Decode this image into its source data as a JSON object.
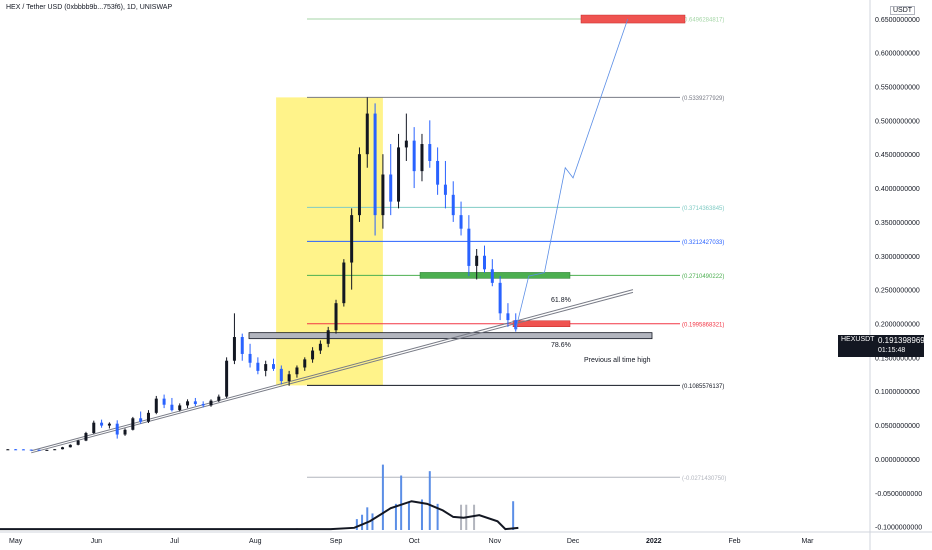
{
  "header": {
    "title": "HEX / Tether USD (0xbbbb9b...753f6), 1D, UNISWAP",
    "currency": "USDT"
  },
  "price_tag": {
    "symbol": "HEXUSDT",
    "price": "0.1913989690",
    "countdown": "01:15:48"
  },
  "annotations": {
    "prev_ath": "Previous all time high",
    "fib_618": "61.8%",
    "fib_786": "78.6%"
  },
  "colors": {
    "up": "#131722",
    "down": "#2962ff",
    "highlight": "#fff176",
    "red_box": "#ef5350",
    "green_box": "#4caf50",
    "volume_blue": "#5b8ee6",
    "volume_gray": "#b2b5be"
  },
  "chart_data": {
    "type": "candlestick",
    "y_axis": {
      "ticks": [
        "0.6500000000",
        "0.6000000000",
        "0.5500000000",
        "0.5000000000",
        "0.4500000000",
        "0.4000000000",
        "0.3500000000",
        "0.3000000000",
        "0.2500000000",
        "0.2000000000",
        "0.1500000000",
        "0.1000000000",
        "0.0500000000",
        "0.0000000000",
        "-0.0500000000",
        "-0.1000000000"
      ],
      "range": [
        -0.105,
        0.66
      ]
    },
    "x_axis": {
      "ticks": [
        "May",
        "Jun",
        "Jul",
        "Aug",
        "Sep",
        "Oct",
        "Nov",
        "Dec",
        "2022",
        "Feb",
        "Mar"
      ],
      "range": [
        "2021-04-25",
        "2022-03-25"
      ]
    },
    "fib_levels": [
      {
        "label": "(0.6496284817)",
        "value": 0.6496284817,
        "color": "#a5d6a7"
      },
      {
        "label": "(0.5339277929)",
        "value": 0.5339277929,
        "color": "#787b86"
      },
      {
        "label": "(0.3714363845)",
        "value": 0.3714363845,
        "color": "#80cbc4"
      },
      {
        "label": "(0.3212427033)",
        "value": 0.3212427033,
        "color": "#2962ff"
      },
      {
        "label": "(0.2710490222)",
        "value": 0.2710490222,
        "color": "#4caf50"
      },
      {
        "label": "(0.1995868321)",
        "value": 0.1995868321,
        "color": "#f23645"
      },
      {
        "label": "(0.1085576137)",
        "value": 0.1085576137,
        "color": "#131722"
      },
      {
        "label": "(-0.0271430750)",
        "value": -0.027143075,
        "color": "#b2b5be"
      }
    ],
    "candles": [
      [
        "2021-04-28",
        0.014,
        0.0145,
        0.0138,
        0.0142
      ],
      [
        "2021-05-01",
        0.0142,
        0.0146,
        0.0139,
        0.0141
      ],
      [
        "2021-05-04",
        0.0141,
        0.0143,
        0.0135,
        0.0137
      ],
      [
        "2021-05-07",
        0.0137,
        0.014,
        0.0133,
        0.0136
      ],
      [
        "2021-05-10",
        0.0136,
        0.0138,
        0.0128,
        0.0131
      ],
      [
        "2021-05-13",
        0.0131,
        0.0135,
        0.0127,
        0.0133
      ],
      [
        "2021-05-16",
        0.0133,
        0.0145,
        0.013,
        0.0143
      ],
      [
        "2021-05-19",
        0.0143,
        0.0178,
        0.014,
        0.0172
      ],
      [
        "2021-05-22",
        0.0172,
        0.0215,
        0.0168,
        0.0208
      ],
      [
        "2021-05-25",
        0.0208,
        0.0283,
        0.02,
        0.027
      ],
      [
        "2021-05-28",
        0.027,
        0.04,
        0.0262,
        0.0382
      ],
      [
        "2021-05-31",
        0.0382,
        0.0565,
        0.037,
        0.0535
      ],
      [
        "2021-06-03",
        0.0535,
        0.058,
        0.046,
        0.0492
      ],
      [
        "2021-06-06",
        0.0492,
        0.054,
        0.045,
        0.052
      ],
      [
        "2021-06-09",
        0.052,
        0.057,
        0.03,
        0.036
      ],
      [
        "2021-06-12",
        0.036,
        0.045,
        0.034,
        0.043
      ],
      [
        "2021-06-15",
        0.043,
        0.062,
        0.042,
        0.06
      ],
      [
        "2021-06-18",
        0.06,
        0.07,
        0.052,
        0.055
      ],
      [
        "2021-06-21",
        0.055,
        0.072,
        0.053,
        0.068
      ],
      [
        "2021-06-24",
        0.068,
        0.093,
        0.066,
        0.089
      ],
      [
        "2021-06-27",
        0.089,
        0.095,
        0.075,
        0.08
      ],
      [
        "2021-06-30",
        0.08,
        0.09,
        0.07,
        0.072
      ],
      [
        "2021-07-03",
        0.072,
        0.082,
        0.07,
        0.079
      ],
      [
        "2021-07-06",
        0.079,
        0.088,
        0.075,
        0.085
      ],
      [
        "2021-07-09",
        0.085,
        0.09,
        0.078,
        0.081
      ],
      [
        "2021-07-12",
        0.081,
        0.085,
        0.076,
        0.079
      ],
      [
        "2021-07-15",
        0.079,
        0.088,
        0.077,
        0.086
      ],
      [
        "2021-07-18",
        0.086,
        0.095,
        0.084,
        0.092
      ],
      [
        "2021-07-21",
        0.092,
        0.15,
        0.09,
        0.145
      ],
      [
        "2021-07-24",
        0.145,
        0.215,
        0.14,
        0.18
      ],
      [
        "2021-07-27",
        0.18,
        0.185,
        0.145,
        0.155
      ],
      [
        "2021-07-30",
        0.155,
        0.17,
        0.135,
        0.142
      ],
      [
        "2021-08-02",
        0.142,
        0.15,
        0.125,
        0.13
      ],
      [
        "2021-08-05",
        0.13,
        0.145,
        0.122,
        0.14
      ],
      [
        "2021-08-08",
        0.14,
        0.148,
        0.13,
        0.133
      ],
      [
        "2021-08-11",
        0.133,
        0.138,
        0.11,
        0.115
      ],
      [
        "2021-08-14",
        0.115,
        0.13,
        0.108,
        0.125
      ],
      [
        "2021-08-17",
        0.125,
        0.138,
        0.12,
        0.135
      ],
      [
        "2021-08-20",
        0.135,
        0.15,
        0.13,
        0.147
      ],
      [
        "2021-08-23",
        0.147,
        0.165,
        0.142,
        0.16
      ],
      [
        "2021-08-26",
        0.16,
        0.175,
        0.155,
        0.17
      ],
      [
        "2021-08-29",
        0.17,
        0.195,
        0.165,
        0.19
      ],
      [
        "2021-09-01",
        0.19,
        0.235,
        0.185,
        0.23
      ],
      [
        "2021-09-04",
        0.23,
        0.295,
        0.225,
        0.29
      ],
      [
        "2021-09-07",
        0.29,
        0.37,
        0.25,
        0.36
      ],
      [
        "2021-09-10",
        0.36,
        0.46,
        0.35,
        0.45
      ],
      [
        "2021-09-13",
        0.45,
        0.534,
        0.43,
        0.51
      ],
      [
        "2021-09-16",
        0.51,
        0.525,
        0.33,
        0.36
      ],
      [
        "2021-09-19",
        0.36,
        0.45,
        0.34,
        0.42
      ],
      [
        "2021-09-22",
        0.42,
        0.465,
        0.36,
        0.38
      ],
      [
        "2021-09-25",
        0.38,
        0.48,
        0.37,
        0.46
      ],
      [
        "2021-09-28",
        0.46,
        0.51,
        0.44,
        0.47
      ],
      [
        "2021-10-01",
        0.47,
        0.49,
        0.4,
        0.425
      ],
      [
        "2021-10-04",
        0.425,
        0.48,
        0.41,
        0.465
      ],
      [
        "2021-10-07",
        0.465,
        0.5,
        0.43,
        0.44
      ],
      [
        "2021-10-10",
        0.44,
        0.46,
        0.39,
        0.405
      ],
      [
        "2021-10-13",
        0.405,
        0.44,
        0.37,
        0.39
      ],
      [
        "2021-10-16",
        0.39,
        0.41,
        0.35,
        0.36
      ],
      [
        "2021-10-19",
        0.36,
        0.38,
        0.33,
        0.34
      ],
      [
        "2021-10-22",
        0.34,
        0.36,
        0.27,
        0.285
      ],
      [
        "2021-10-25",
        0.285,
        0.31,
        0.265,
        0.3
      ],
      [
        "2021-10-28",
        0.3,
        0.315,
        0.275,
        0.28
      ],
      [
        "2021-10-31",
        0.28,
        0.295,
        0.255,
        0.26
      ],
      [
        "2021-11-03",
        0.26,
        0.27,
        0.205,
        0.215
      ],
      [
        "2021-11-06",
        0.215,
        0.23,
        0.195,
        0.205
      ],
      [
        "2021-11-09",
        0.205,
        0.215,
        0.188,
        0.1914
      ]
    ],
    "projection": [
      [
        "2021-11-09",
        0.1914
      ],
      [
        "2021-11-14",
        0.27
      ],
      [
        "2021-11-20",
        0.275
      ],
      [
        "2021-11-28",
        0.43
      ],
      [
        "2021-12-01",
        0.415
      ],
      [
        "2021-12-22",
        0.6496
      ]
    ],
    "volume": [
      [
        "2021-08-17",
        0.004,
        "gray"
      ],
      [
        "2021-09-09",
        0.025,
        "blue"
      ],
      [
        "2021-09-11",
        0.035,
        "blue"
      ],
      [
        "2021-09-13",
        0.052,
        "blue"
      ],
      [
        "2021-09-15",
        0.038,
        "blue"
      ],
      [
        "2021-09-19",
        0.15,
        "blue"
      ],
      [
        "2021-09-24",
        0.06,
        "blue"
      ],
      [
        "2021-09-26",
        0.125,
        "blue"
      ],
      [
        "2021-09-29",
        0.065,
        "blue"
      ],
      [
        "2021-10-04",
        0.07,
        "blue"
      ],
      [
        "2021-10-07",
        0.135,
        "blue"
      ],
      [
        "2021-10-10",
        0.06,
        "blue"
      ],
      [
        "2021-10-19",
        0.058,
        "gray"
      ],
      [
        "2021-10-21",
        0.058,
        "gray"
      ],
      [
        "2021-10-24",
        0.058,
        "gray"
      ],
      [
        "2021-11-08",
        0.066,
        "blue"
      ]
    ],
    "volume_ma": [
      [
        "2021-04-25",
        0.002
      ],
      [
        "2021-08-30",
        0.002
      ],
      [
        "2021-09-08",
        0.005
      ],
      [
        "2021-09-14",
        0.02
      ],
      [
        "2021-09-22",
        0.05
      ],
      [
        "2021-09-30",
        0.066
      ],
      [
        "2021-10-06",
        0.06
      ],
      [
        "2021-10-12",
        0.045
      ],
      [
        "2021-10-16",
        0.03
      ],
      [
        "2021-10-20",
        0.028
      ],
      [
        "2021-10-26",
        0.034
      ],
      [
        "2021-11-02",
        0.02
      ],
      [
        "2021-11-05",
        0.002
      ],
      [
        "2021-11-10",
        0.005
      ]
    ]
  }
}
